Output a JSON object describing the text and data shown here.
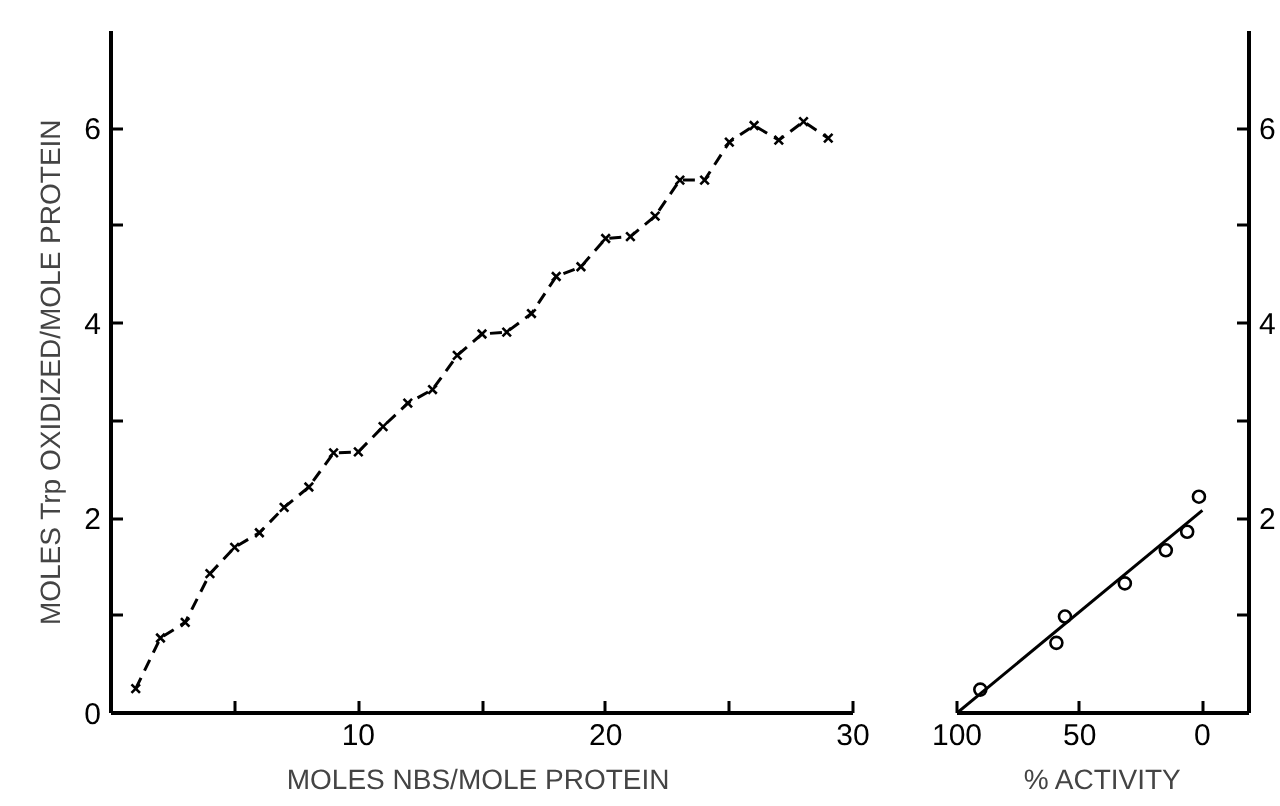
{
  "chart_data": [
    {
      "type": "line",
      "xlabel": "MOLES NBS/MOLE  PROTEIN",
      "ylabel": "MOLES Trp OXIDIZED/MOLE PROTEIN",
      "marker": "cross",
      "line_style": "dashed",
      "grid": false,
      "x": [
        1,
        2,
        3,
        4,
        5,
        6,
        7,
        8,
        9,
        10,
        11,
        12,
        13,
        14,
        15,
        16,
        17,
        18,
        19,
        20,
        21,
        22,
        23,
        24,
        25,
        26,
        27,
        28,
        29
      ],
      "series": [
        {
          "color": "#000000",
          "values": [
            0.25,
            0.77,
            0.93,
            1.43,
            1.7,
            1.85,
            2.11,
            2.32,
            2.67,
            2.68,
            2.94,
            3.18,
            3.32,
            3.67,
            3.89,
            3.91,
            4.1,
            4.48,
            4.58,
            4.87,
            4.89,
            5.1,
            5.47,
            5.47,
            5.86,
            6.03,
            5.88,
            6.07,
            5.9
          ]
        }
      ],
      "xlim": [
        0,
        30
      ],
      "ylim": [
        0,
        7
      ],
      "xticks": [
        {
          "value": 5,
          "label": null
        },
        10,
        {
          "value": 15,
          "label": null
        },
        20,
        {
          "value": 25,
          "label": null
        },
        30
      ],
      "yticks": [
        0,
        {
          "value": 1,
          "label": null
        },
        2,
        {
          "value": 3,
          "label": null
        },
        4,
        {
          "value": 5,
          "label": null
        },
        6
      ]
    },
    {
      "type": "scatter",
      "xlabel": "% ACTIVITY",
      "marker": "circle",
      "grid": false,
      "x": [
        90.5,
        59.5,
        56,
        31.6,
        14.9,
        6.2,
        1.4
      ],
      "series": [
        {
          "color": "#000000",
          "axis": "y2",
          "values": [
            0.24,
            0.72,
            0.99,
            1.33,
            1.67,
            1.86,
            2.22
          ]
        },
        {
          "type": "line",
          "color": "#000000",
          "axis": "y2",
          "marker": "none",
          "line_style": "solid",
          "x": [
            100,
            0
          ],
          "values": [
            0,
            2.08
          ]
        }
      ],
      "xlim": [
        100,
        -19
      ],
      "y2lim": [
        0,
        7
      ],
      "xticks": [
        100,
        50,
        0
      ],
      "y2ticks": [
        {
          "value": 1,
          "label": null
        },
        2,
        {
          "value": 3,
          "label": null
        },
        4,
        {
          "value": 5,
          "label": null
        },
        6
      ]
    }
  ]
}
